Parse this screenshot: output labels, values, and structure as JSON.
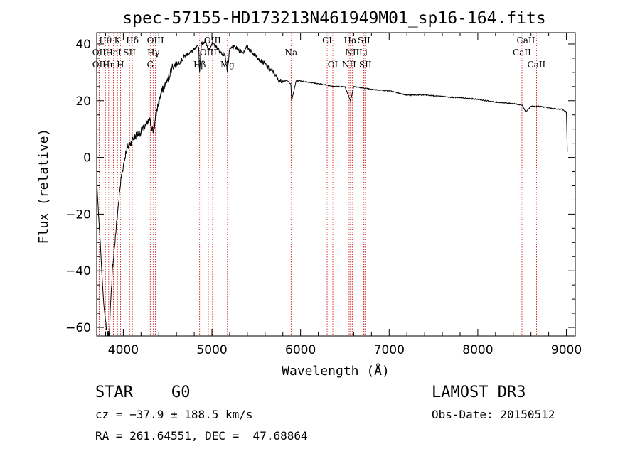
{
  "chart_data": {
    "type": "line",
    "title": "spec-57155-HD173213N461949M01_sp16-164.fits",
    "xlabel": "Wavelength (Å)",
    "ylabel": "Flux (relative)",
    "xlim": [
      3700,
      9100
    ],
    "ylim": [
      -63,
      44
    ],
    "x_ticks": [
      4000,
      5000,
      6000,
      7000,
      8000,
      9000
    ],
    "x_tick_labels": [
      "4000",
      "5000",
      "6000",
      "7000",
      "8000",
      "9000"
    ],
    "y_ticks": [
      -60,
      -40,
      -20,
      0,
      20,
      40
    ],
    "y_tick_labels": [
      "−60",
      "−40",
      "−20",
      "0",
      "20",
      "40"
    ],
    "grid": false,
    "series": [
      {
        "x": [
          3700,
          3720,
          3740,
          3760,
          3780,
          3800,
          3820,
          3840,
          3860,
          3870,
          3880,
          3900,
          3920,
          3940,
          3960,
          3980,
          4000,
          4030,
          4060,
          4100,
          4150,
          4200,
          4250,
          4300,
          4340,
          4380,
          4420,
          4460,
          4500,
          4550,
          4600,
          4650,
          4700,
          4750,
          4800,
          4850,
          4861,
          4880,
          4920,
          4960,
          5000,
          5050,
          5100,
          5150,
          5175,
          5200,
          5250,
          5300,
          5350,
          5400,
          5450,
          5500,
          5550,
          5600,
          5650,
          5700,
          5750,
          5800,
          5850,
          5890,
          5900,
          5950,
          6000,
          6100,
          6200,
          6300,
          6400,
          6500,
          6563,
          6600,
          6700,
          6800,
          7000,
          7200,
          7400,
          7600,
          7800,
          8000,
          8200,
          8400,
          8500,
          8542,
          8600,
          8700,
          8800,
          8900,
          8950,
          9000,
          9010
        ],
        "y": [
          -8,
          -20,
          -30,
          -42,
          -52,
          -58,
          -62,
          -63,
          -50,
          -45,
          -38,
          -32,
          -25,
          -18,
          -12,
          -6,
          -3,
          2,
          4,
          6,
          8,
          9,
          11,
          13,
          9,
          17,
          22,
          25,
          27,
          32,
          33,
          34,
          36,
          37,
          38,
          39,
          30,
          40,
          41,
          38,
          40,
          39,
          37,
          36,
          30,
          38,
          39,
          38,
          37,
          39,
          37,
          36,
          34,
          33,
          31,
          30,
          27,
          27,
          27,
          26,
          20,
          27,
          27,
          26.5,
          26,
          25.5,
          25,
          25,
          20,
          25,
          24.5,
          24,
          23.5,
          22,
          22,
          21.5,
          21,
          20.5,
          19.5,
          19,
          18.5,
          16,
          18,
          18,
          17.5,
          17,
          17,
          16,
          2
        ]
      }
    ],
    "annotations": [
      {
        "text": "Hθ",
        "row": 1,
        "lambda": 3798
      },
      {
        "text": "K",
        "row": 1,
        "lambda": 3934
      },
      {
        "text": "Hδ",
        "row": 1,
        "lambda": 4102
      },
      {
        "text": "OIII",
        "row": 1,
        "lambda": 4363
      },
      {
        "text": "OIII",
        "row": 1,
        "lambda": 5007
      },
      {
        "text": "CI",
        "row": 1,
        "lambda": 6300
      },
      {
        "text": "Hα",
        "row": 1,
        "lambda": 6563
      },
      {
        "text": "SII",
        "row": 1,
        "lambda": 6716
      },
      {
        "text": "CaII",
        "row": 1,
        "lambda": 8542
      },
      {
        "text": "OII",
        "row": 2,
        "lambda": 3727
      },
      {
        "text": "HeI",
        "row": 2,
        "lambda": 3889
      },
      {
        "text": "SII",
        "row": 2,
        "lambda": 4070
      },
      {
        "text": "Hγ",
        "row": 2,
        "lambda": 4340
      },
      {
        "text": "OIII",
        "row": 2,
        "lambda": 4959
      },
      {
        "text": "Na",
        "row": 2,
        "lambda": 5893
      },
      {
        "text": "NII",
        "row": 2,
        "lambda": 6583
      },
      {
        "text": "Li",
        "row": 2,
        "lambda": 6708
      },
      {
        "text": "CaII",
        "row": 2,
        "lambda": 8498
      },
      {
        "text": "OII",
        "row": 3,
        "lambda": 3727
      },
      {
        "text": "Hη",
        "row": 3,
        "lambda": 3835
      },
      {
        "text": "H",
        "row": 3,
        "lambda": 3968
      },
      {
        "text": "G",
        "row": 3,
        "lambda": 4304
      },
      {
        "text": "Hβ",
        "row": 3,
        "lambda": 4861
      },
      {
        "text": "Mg",
        "row": 3,
        "lambda": 5175
      },
      {
        "text": "OI",
        "row": 3,
        "lambda": 6364
      },
      {
        "text": "NII",
        "row": 3,
        "lambda": 6548
      },
      {
        "text": "SII",
        "row": 3,
        "lambda": 6731
      },
      {
        "text": "CaII",
        "row": 3,
        "lambda": 8662
      }
    ],
    "marker_lines": [
      3727,
      3798,
      3835,
      3889,
      3934,
      3968,
      4070,
      4102,
      4304,
      4340,
      4363,
      4861,
      4959,
      5007,
      5175,
      5893,
      6300,
      6364,
      6548,
      6563,
      6583,
      6708,
      6716,
      6731,
      8498,
      8542,
      8662
    ],
    "colors": {
      "spectrum": "#000000",
      "marker_lines": "#cc0000"
    }
  },
  "info": {
    "object_class": "STAR",
    "subclass": "G0",
    "survey": "LAMOST DR3",
    "cz": "cz = −37.9 ± 188.5 km/s",
    "obs_date": "Obs-Date: 20150512",
    "coords": "RA = 261.64551, DEC =  47.68864"
  }
}
